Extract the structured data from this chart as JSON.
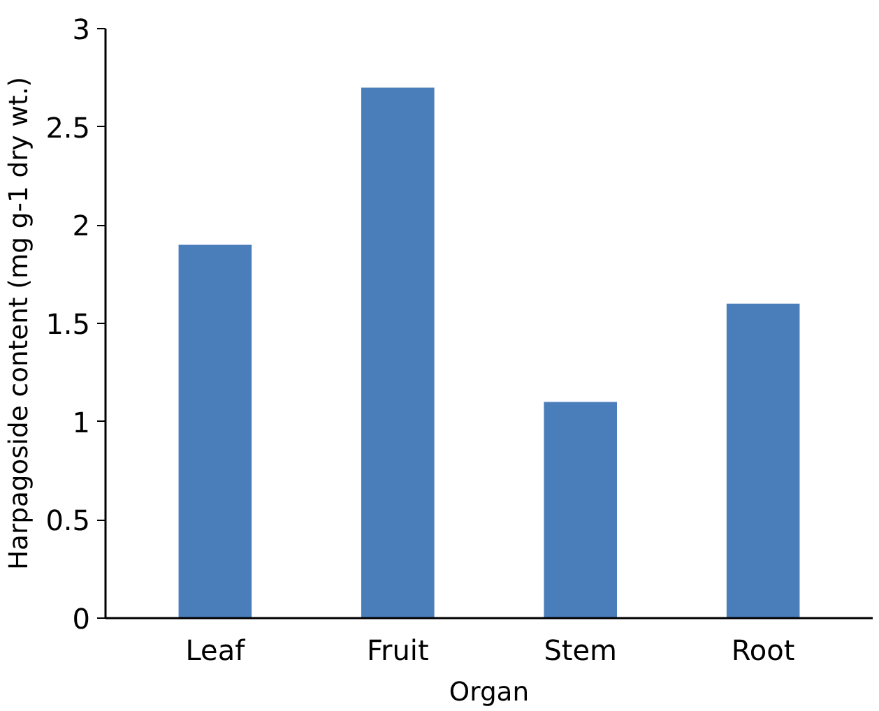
{
  "chart_data": {
    "type": "bar",
    "xlabel": "Organ",
    "ylabel": "Harpagoside content (mg g-1 dry wt.)",
    "categories": [
      "Leaf",
      "Fruit",
      "Stem",
      "Root"
    ],
    "values": [
      1.9,
      2.7,
      1.1,
      1.6
    ],
    "color": "#4a7ebb",
    "ylim": [
      0,
      3
    ],
    "yticks": [
      0,
      0.5,
      1,
      1.5,
      2,
      2.5,
      3
    ],
    "grid": false
  }
}
